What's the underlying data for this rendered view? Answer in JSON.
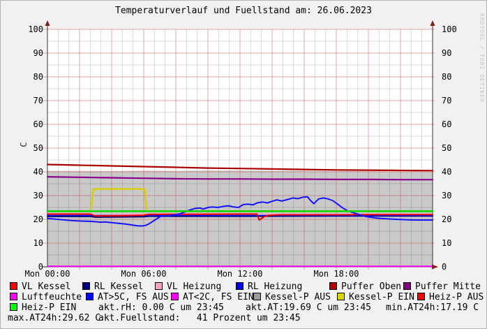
{
  "header": {
    "watermark": "RRDTOOL / TOBI OETIKER"
  },
  "chart_data": {
    "type": "line",
    "title": "Temperaturverlauf und Fuellstand am: 26.06.2023",
    "xlabel": "",
    "ylabel": "C",
    "ylim": [
      0,
      100
    ],
    "y_tick_step": 10,
    "x_hours": [
      0,
      24
    ],
    "x_ticks": [
      {
        "hour": 0,
        "label": "Mon 00:00"
      },
      {
        "hour": 6,
        "label": "Mon 06:00"
      },
      {
        "hour": 12,
        "label": "Mon 12:00"
      },
      {
        "hour": 18,
        "label": "Mon 18:00"
      }
    ],
    "grid": {
      "minor_x_hours": 0.6667,
      "major_x_hours": 2,
      "minor_y": 5,
      "major_y": 10,
      "minor_color": "rgba(0,0,0,0.13)",
      "major_color": "rgba(205,60,60,0.45)"
    },
    "axis_color": "#333333",
    "arrow_color": "#8b1a1a",
    "legend_position": "bottom",
    "series": [
      {
        "name": "Kessel-P AUS",
        "kind": "area",
        "color": "#c9c9c9",
        "points": [
          [
            0,
            40.4
          ],
          [
            2,
            40.4
          ],
          [
            4,
            40.3
          ],
          [
            6,
            40.5
          ],
          [
            8,
            40.4
          ],
          [
            10,
            40.6
          ],
          [
            12,
            40.6
          ],
          [
            14,
            40.5
          ],
          [
            16,
            40.4
          ],
          [
            18,
            40.3
          ],
          [
            20,
            40.2
          ],
          [
            22,
            40.0
          ],
          [
            24,
            39.9
          ]
        ]
      },
      {
        "name": "Puffer Mitte",
        "kind": "line",
        "color": "#8a008a",
        "width": 2.2,
        "points": [
          [
            0,
            37.9
          ],
          [
            2,
            37.7
          ],
          [
            4,
            37.5
          ],
          [
            6,
            37.3
          ],
          [
            8,
            37.1
          ],
          [
            10,
            37.0
          ],
          [
            12,
            37.0
          ],
          [
            14,
            36.9
          ],
          [
            16,
            36.9
          ],
          [
            18,
            36.8
          ],
          [
            20,
            36.8
          ],
          [
            22,
            36.7
          ],
          [
            24,
            36.7
          ]
        ]
      },
      {
        "name": "Puffer Oben",
        "kind": "line",
        "color": "#aa0000",
        "width": 2.2,
        "points": [
          [
            0,
            43.1
          ],
          [
            2,
            42.8
          ],
          [
            4,
            42.5
          ],
          [
            6,
            42.2
          ],
          [
            8,
            41.9
          ],
          [
            10,
            41.6
          ],
          [
            12,
            41.4
          ],
          [
            14,
            41.2
          ],
          [
            16,
            41.0
          ],
          [
            18,
            40.8
          ],
          [
            20,
            40.7
          ],
          [
            22,
            40.6
          ],
          [
            24,
            40.5
          ]
        ]
      },
      {
        "name": "VL Heizung",
        "kind": "line",
        "color": "#ff9fc0",
        "width": 1.6,
        "points": [
          [
            0,
            22.4
          ],
          [
            2.7,
            22.4
          ],
          [
            3.0,
            21.7
          ],
          [
            6.2,
            22.3
          ],
          [
            12,
            22.4
          ],
          [
            13.0,
            22.4
          ],
          [
            13.1,
            23.2
          ],
          [
            13.4,
            22.2
          ],
          [
            24,
            22.2
          ]
        ]
      },
      {
        "name": "RL Kessel",
        "kind": "line",
        "color": "#000070",
        "width": 2,
        "points": [
          [
            0,
            21.2
          ],
          [
            2.7,
            21.2
          ],
          [
            3.0,
            20.9
          ],
          [
            6.0,
            21.1
          ],
          [
            6.3,
            21.3
          ],
          [
            12,
            21.3
          ],
          [
            18,
            21.4
          ],
          [
            24,
            21.4
          ]
        ]
      },
      {
        "name": "RL Heizung",
        "kind": "line",
        "color": "#0000ff",
        "width": 1.6,
        "points": [
          [
            0,
            21.6
          ],
          [
            12,
            21.6
          ],
          [
            24,
            21.6
          ]
        ]
      },
      {
        "name": "VL Kessel",
        "kind": "line",
        "color": "#e80000",
        "width": 2,
        "points": [
          [
            0,
            22.2
          ],
          [
            2.7,
            22.2
          ],
          [
            2.95,
            21.4
          ],
          [
            4.5,
            21.5
          ],
          [
            6.0,
            21.7
          ],
          [
            6.3,
            22.1
          ],
          [
            9,
            22.15
          ],
          [
            12,
            22.2
          ],
          [
            13.05,
            22.2
          ],
          [
            13.2,
            19.7
          ],
          [
            13.5,
            21.1
          ],
          [
            13.8,
            21.7
          ],
          [
            14.5,
            21.9
          ],
          [
            18,
            21.9
          ],
          [
            21,
            22.0
          ],
          [
            24,
            22.0
          ]
        ]
      },
      {
        "name": "AT>5C, FS AUS",
        "kind": "line",
        "color": "#1414ff",
        "width": 2,
        "points": [
          [
            0,
            20.4
          ],
          [
            0.5,
            20.1
          ],
          [
            1,
            19.8
          ],
          [
            1.5,
            19.5
          ],
          [
            2,
            19.3
          ],
          [
            2.5,
            19.2
          ],
          [
            3,
            19.0
          ],
          [
            3.3,
            18.8
          ],
          [
            3.6,
            18.9
          ],
          [
            4,
            18.6
          ],
          [
            4.3,
            18.4
          ],
          [
            4.6,
            18.2
          ],
          [
            5,
            17.9
          ],
          [
            5.3,
            17.6
          ],
          [
            5.6,
            17.3
          ],
          [
            5.9,
            17.2
          ],
          [
            6.1,
            17.4
          ],
          [
            6.3,
            18.0
          ],
          [
            6.6,
            19.3
          ],
          [
            6.9,
            20.6
          ],
          [
            7.1,
            21.4
          ],
          [
            7.3,
            21.6
          ],
          [
            7.5,
            21.3
          ],
          [
            7.7,
            21.7
          ],
          [
            8,
            22.0
          ],
          [
            8.3,
            22.4
          ],
          [
            8.6,
            23.2
          ],
          [
            8.9,
            24.0
          ],
          [
            9.2,
            24.6
          ],
          [
            9.5,
            24.8
          ],
          [
            9.7,
            24.3
          ],
          [
            10,
            25.0
          ],
          [
            10.3,
            25.2
          ],
          [
            10.6,
            25.0
          ],
          [
            11,
            25.5
          ],
          [
            11.3,
            25.7
          ],
          [
            11.6,
            25.2
          ],
          [
            11.9,
            25.0
          ],
          [
            12.2,
            26.2
          ],
          [
            12.5,
            26.4
          ],
          [
            12.8,
            26.1
          ],
          [
            13.1,
            27.0
          ],
          [
            13.4,
            27.3
          ],
          [
            13.7,
            26.9
          ],
          [
            14,
            27.6
          ],
          [
            14.3,
            28.2
          ],
          [
            14.6,
            27.7
          ],
          [
            15,
            28.4
          ],
          [
            15.3,
            29.0
          ],
          [
            15.6,
            28.7
          ],
          [
            15.9,
            29.3
          ],
          [
            16.2,
            29.5
          ],
          [
            16.4,
            27.9
          ],
          [
            16.6,
            26.6
          ],
          [
            16.9,
            28.6
          ],
          [
            17.2,
            29.0
          ],
          [
            17.5,
            28.6
          ],
          [
            17.8,
            27.8
          ],
          [
            18.1,
            26.3
          ],
          [
            18.4,
            24.8
          ],
          [
            18.7,
            23.6
          ],
          [
            19.0,
            22.9
          ],
          [
            19.3,
            22.3
          ],
          [
            19.6,
            21.6
          ],
          [
            19.9,
            21.1
          ],
          [
            20.3,
            20.7
          ],
          [
            20.7,
            20.4
          ],
          [
            21,
            20.3
          ],
          [
            21.5,
            20.1
          ],
          [
            22,
            19.9
          ],
          [
            22.5,
            19.8
          ],
          [
            23,
            19.7
          ],
          [
            23.5,
            19.7
          ],
          [
            24,
            19.7
          ]
        ]
      },
      {
        "name": "Kessel-P EIN",
        "kind": "line",
        "color": "#d8ce00",
        "width": 2.5,
        "points": [
          [
            0,
            23.4
          ],
          [
            2.7,
            23.4
          ],
          [
            2.85,
            32.6
          ],
          [
            3.05,
            32.8
          ],
          [
            5.85,
            32.8
          ],
          [
            6.05,
            32.6
          ],
          [
            6.2,
            23.4
          ],
          [
            24,
            23.4
          ]
        ]
      },
      {
        "name": "Heiz-P EIN",
        "kind": "line",
        "color": "#00d400",
        "width": 2.5,
        "points": [
          [
            0,
            23.4
          ],
          [
            24,
            23.4
          ]
        ]
      },
      {
        "name": "Luftfeuchte",
        "kind": "line",
        "color": "#ff00ff",
        "width": 2,
        "points": [
          [
            0,
            0.2
          ],
          [
            24,
            0.2
          ]
        ]
      }
    ]
  },
  "legend": {
    "items": [
      {
        "label": "VL Kessel",
        "color": "#ff0000"
      },
      {
        "label": "RL Kessel",
        "color": "#000080"
      },
      {
        "label": "VL Heizung",
        "color": "#ff9fc0"
      },
      {
        "label": "RL Heizung",
        "color": "#0000ff"
      },
      {
        "label": "Puffer Oben",
        "color": "#b40000"
      },
      {
        "label": "Puffer Mitte",
        "color": "#800080"
      },
      {
        "label": "Luftfeuchte",
        "color": "#ff00ff"
      },
      {
        "label": "AT>5C, FS AUS",
        "color": "#0000ff"
      },
      {
        "label": "AT<2C, FS EIN",
        "color": "#ff00ff"
      },
      {
        "label": "Kessel-P AUS",
        "color": "#9c9c9c"
      },
      {
        "label": "Kessel-P EIN",
        "color": "#d7d700"
      },
      {
        "label": "Heiz-P AUS",
        "color": "#ff0000"
      },
      {
        "label": "Heiz-P EIN",
        "color": "#00ff00"
      }
    ],
    "stats": [
      {
        "text": "akt.rH: 0.00 C um 23:45"
      },
      {
        "text": "akt.AT:19.69 C um 23:45"
      },
      {
        "text": "min.AT24h:17.19 C"
      },
      {
        "text": "max.AT24h:29.62 C"
      },
      {
        "text": "akt.Fuellstand:   41 Prozent um 23:45"
      }
    ]
  }
}
